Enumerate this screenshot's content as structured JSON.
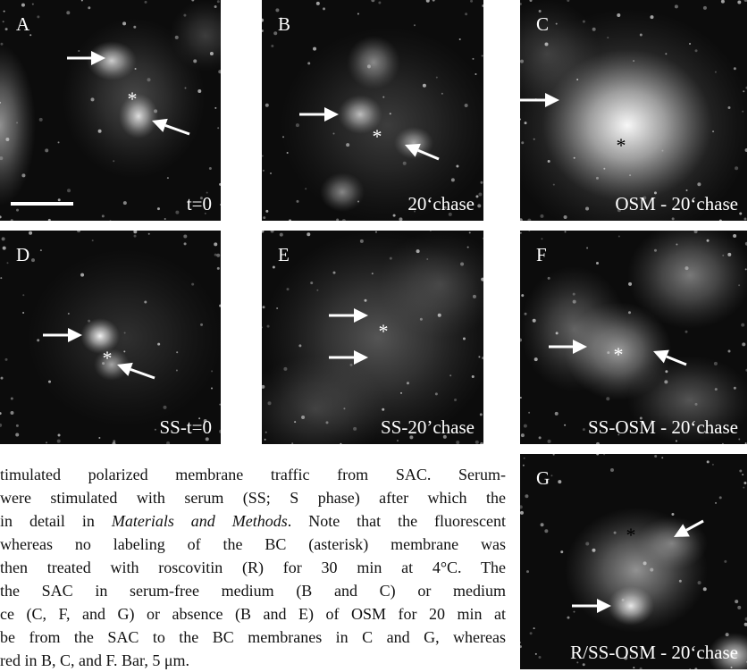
{
  "panels": [
    {
      "letter": "A",
      "label": "t=0",
      "marker": "*"
    },
    {
      "letter": "B",
      "label": "20‘chase",
      "marker": "*"
    },
    {
      "letter": "C",
      "label": "OSM - 20‘chase",
      "marker": "*"
    },
    {
      "letter": "D",
      "label": "SS-t=0",
      "marker": "*"
    },
    {
      "letter": "E",
      "label": "SS-20’chase",
      "marker": "*"
    },
    {
      "letter": "F",
      "label": "SS-OSM - 20‘chase",
      "marker": "*"
    },
    {
      "letter": "G",
      "label": "R/SS-OSM - 20‘chase",
      "marker": "*"
    }
  ],
  "caption": {
    "lines": [
      "timulated polarized membrane traffic from SAC. Serum-",
      "were stimulated with serum (SS; S phase) after which the",
      [
        "in detail in ",
        "Materials and Methods",
        ". Note that the fluorescent"
      ],
      "whereas no labeling of the BC (asterisk) membrane was",
      "then treated with roscovitin (R) for 30 min at 4°C. The",
      "the SAC in serum-free medium (B and C) or medium",
      "ce (C, F, and G) or absence (B and E) of OSM for 20 min at",
      "be from the SAC to the BC membranes in C and G, whereas",
      "red in B, C, and F. Bar, 5 μm."
    ]
  }
}
